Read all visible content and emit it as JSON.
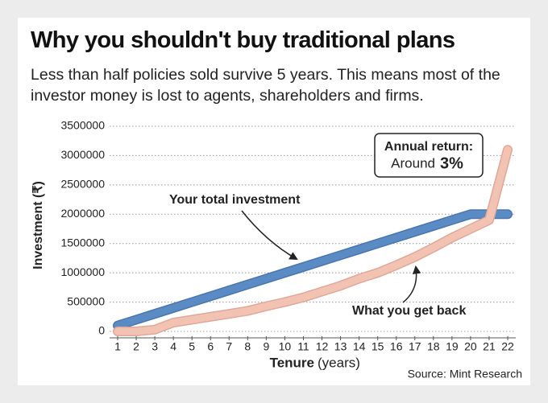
{
  "chart_data": {
    "type": "line",
    "title": "Why you shouldn't buy traditional plans",
    "subtitle": "Less than half policies sold survive 5 years. This means most of the investor money is lost to agents, shareholders and firms.",
    "y_label": "Investment (₹)",
    "x_label": "Tenure",
    "x_label_unit": "(years)",
    "source": "Source: Mint Research",
    "annotation": {
      "line1": "Annual return:",
      "line2": "Around",
      "value": "3%"
    },
    "x": [
      1,
      2,
      3,
      4,
      5,
      6,
      7,
      8,
      9,
      10,
      11,
      12,
      13,
      14,
      15,
      16,
      17,
      18,
      19,
      20,
      21,
      22
    ],
    "xlim": [
      1,
      22
    ],
    "xticks": [
      1,
      2,
      3,
      4,
      5,
      6,
      7,
      8,
      9,
      10,
      11,
      12,
      13,
      14,
      15,
      16,
      17,
      18,
      19,
      20,
      21,
      22
    ],
    "ylim": [
      0,
      3500000
    ],
    "yticks": [
      0,
      500000,
      1000000,
      1500000,
      2000000,
      2500000,
      3000000,
      3500000
    ],
    "grid": true,
    "series": [
      {
        "name": "Your total investment",
        "color": "#5b8bc5",
        "values": [
          100000,
          200000,
          300000,
          400000,
          500000,
          600000,
          700000,
          800000,
          900000,
          1000000,
          1100000,
          1200000,
          1300000,
          1400000,
          1500000,
          1600000,
          1700000,
          1800000,
          1900000,
          2000000,
          2000000,
          2000000
        ]
      },
      {
        "name": "What you get back",
        "color": "#f2c3b3",
        "values": [
          0,
          0,
          30000,
          150000,
          200000,
          250000,
          300000,
          350000,
          430000,
          500000,
          580000,
          680000,
          780000,
          900000,
          1000000,
          1130000,
          1270000,
          1430000,
          1600000,
          1750000,
          1900000,
          3100000
        ]
      }
    ]
  }
}
